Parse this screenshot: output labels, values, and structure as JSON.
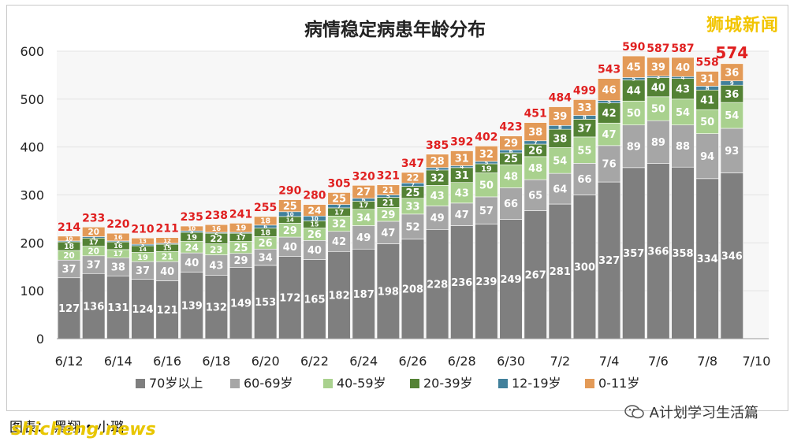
{
  "header": {
    "title": "病情稳定病患年龄分布",
    "brand": "狮城新闻"
  },
  "footer": {
    "caption": "图表：  黑翔 • 小璐",
    "watermark": "shicheng.news",
    "account": "A计划学习生活篇",
    "account_icon": "wechat-icon"
  },
  "chart_data": {
    "type": "bar",
    "stacked": true,
    "ylim": [
      0,
      600
    ],
    "yticks": [
      0,
      100,
      200,
      300,
      400,
      500,
      600
    ],
    "grid": true,
    "legend_position": "bottom",
    "categories": [
      "6/12",
      "6/13",
      "6/14",
      "6/15",
      "6/16",
      "6/17",
      "6/18",
      "6/19",
      "6/20",
      "6/21",
      "6/22",
      "6/23",
      "6/24",
      "6/25",
      "6/26",
      "6/27",
      "6/28",
      "6/29",
      "6/30",
      "7/1",
      "7/2",
      "7/3",
      "7/4",
      "7/5",
      "7/6",
      "7/7",
      "7/8",
      "7/9"
    ],
    "xtick_labels": [
      "6/12",
      "6/14",
      "6/16",
      "6/18",
      "6/20",
      "6/22",
      "6/24",
      "6/26",
      "6/28",
      "6/30",
      "7/2",
      "7/4",
      "7/6",
      "7/8",
      "7/10"
    ],
    "totals": [
      214,
      233,
      220,
      210,
      211,
      235,
      238,
      241,
      255,
      290,
      280,
      305,
      320,
      321,
      347,
      385,
      392,
      402,
      423,
      451,
      484,
      499,
      543,
      590,
      587,
      587,
      558,
      574
    ],
    "series": [
      {
        "name": "70岁以上",
        "color": "#7f7f7f",
        "values": [
          127,
          136,
          131,
          124,
          121,
          139,
          132,
          149,
          153,
          172,
          165,
          182,
          187,
          198,
          208,
          228,
          236,
          239,
          249,
          267,
          281,
          300,
          327,
          357,
          366,
          358,
          334,
          346
        ]
      },
      {
        "name": "60-69岁",
        "color": "#a6a6a6",
        "values": [
          37,
          37,
          38,
          37,
          40,
          40,
          43,
          29,
          34,
          40,
          40,
          42,
          49,
          47,
          52,
          49,
          47,
          57,
          66,
          65,
          64,
          66,
          76,
          89,
          89,
          88,
          94,
          93
        ]
      },
      {
        "name": "40-59岁",
        "color": "#a9d18e",
        "values": [
          20,
          20,
          17,
          19,
          21,
          24,
          23,
          25,
          26,
          29,
          26,
          32,
          34,
          29,
          33,
          43,
          43,
          50,
          48,
          48,
          54,
          55,
          47,
          50,
          50,
          54,
          50,
          54
        ]
      },
      {
        "name": "20-39岁",
        "color": "#548235",
        "values": [
          18,
          17,
          16,
          14,
          15,
          19,
          22,
          17,
          18,
          14,
          15,
          17,
          17,
          21,
          25,
          32,
          31,
          19,
          25,
          26,
          38,
          37,
          42,
          44,
          40,
          43,
          41,
          36
        ]
      },
      {
        "name": "12-19岁",
        "color": "#41809b",
        "values": [
          2,
          3,
          2,
          3,
          2,
          3,
          2,
          2,
          6,
          10,
          10,
          7,
          6,
          5,
          7,
          5,
          4,
          5,
          6,
          7,
          8,
          8,
          5,
          5,
          3,
          4,
          8,
          9
        ]
      },
      {
        "name": "0-11岁",
        "color": "#e39a57",
        "values": [
          10,
          20,
          16,
          13,
          12,
          10,
          16,
          19,
          18,
          25,
          24,
          25,
          27,
          21,
          22,
          28,
          31,
          32,
          29,
          38,
          39,
          33,
          46,
          45,
          39,
          40,
          31,
          36
        ]
      }
    ],
    "label_colors": {
      "total": "#e02020",
      "segment": "#ffffff"
    }
  }
}
